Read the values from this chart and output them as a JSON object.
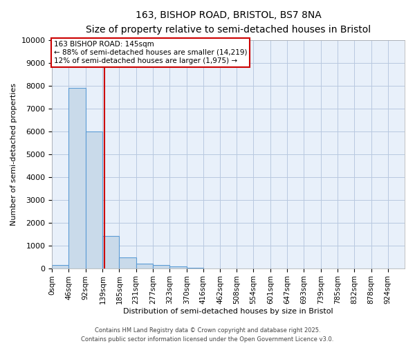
{
  "title": "163, BISHOP ROAD, BRISTOL, BS7 8NA",
  "subtitle": "Size of property relative to semi-detached houses in Bristol",
  "xlabel": "Distribution of semi-detached houses by size in Bristol",
  "ylabel": "Number of semi-detached properties",
  "bin_edges": [
    0,
    46,
    92,
    139,
    185,
    231,
    277,
    323,
    370,
    416,
    462,
    508,
    554,
    601,
    647,
    693,
    739,
    785,
    832,
    878,
    924,
    970
  ],
  "bar_heights": [
    150,
    7900,
    6000,
    1400,
    480,
    200,
    130,
    80,
    10,
    0,
    0,
    0,
    0,
    0,
    0,
    0,
    0,
    0,
    0,
    0,
    0
  ],
  "bar_color": "#c9daea",
  "bar_edge_color": "#5b9bd5",
  "plot_bg_color": "#e8f0fa",
  "property_size": 145,
  "vline_color": "#cc0000",
  "annotation_line1": "163 BISHOP ROAD: 145sqm",
  "annotation_line2": "← 88% of semi-detached houses are smaller (14,219)",
  "annotation_line3": "12% of semi-detached houses are larger (1,975) →",
  "annotation_box_color": "#ffffff",
  "annotation_box_edge_color": "#cc0000",
  "ylim": [
    0,
    10000
  ],
  "yticks": [
    0,
    1000,
    2000,
    3000,
    4000,
    5000,
    6000,
    7000,
    8000,
    9000,
    10000
  ],
  "footer_lines": [
    "Contains HM Land Registry data © Crown copyright and database right 2025.",
    "Contains public sector information licensed under the Open Government Licence v3.0."
  ],
  "background_color": "#ffffff",
  "grid_color": "#b8c8e0",
  "tick_labels": [
    "0sqm",
    "46sqm",
    "92sqm",
    "139sqm",
    "185sqm",
    "231sqm",
    "277sqm",
    "323sqm",
    "370sqm",
    "416sqm",
    "462sqm",
    "508sqm",
    "554sqm",
    "601sqm",
    "647sqm",
    "693sqm",
    "739sqm",
    "785sqm",
    "832sqm",
    "878sqm",
    "924sqm"
  ]
}
